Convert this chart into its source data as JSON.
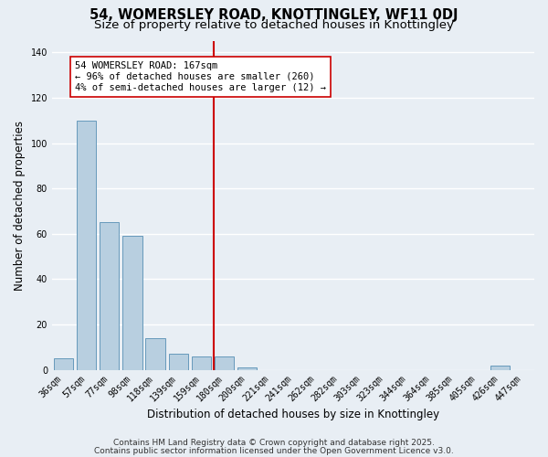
{
  "title": "54, WOMERSLEY ROAD, KNOTTINGLEY, WF11 0DJ",
  "subtitle": "Size of property relative to detached houses in Knottingley",
  "xlabel": "Distribution of detached houses by size in Knottingley",
  "ylabel": "Number of detached properties",
  "categories": [
    "36sqm",
    "57sqm",
    "77sqm",
    "98sqm",
    "118sqm",
    "139sqm",
    "159sqm",
    "180sqm",
    "200sqm",
    "221sqm",
    "241sqm",
    "262sqm",
    "282sqm",
    "303sqm",
    "323sqm",
    "344sqm",
    "364sqm",
    "385sqm",
    "405sqm",
    "426sqm",
    "447sqm"
  ],
  "values": [
    5,
    110,
    65,
    59,
    14,
    7,
    6,
    6,
    1,
    0,
    0,
    0,
    0,
    0,
    0,
    0,
    0,
    0,
    0,
    2,
    0
  ],
  "bar_color": "#b8cfe0",
  "bar_edge_color": "#6699bb",
  "annotation_line1": "54 WOMERSLEY ROAD: 167sqm",
  "annotation_line2": "← 96% of detached houses are smaller (260)",
  "annotation_line3": "4% of semi-detached houses are larger (12) →",
  "vline_x": 6.55,
  "vline_color": "#cc0000",
  "annotation_box_edge": "#cc0000",
  "background_color": "#e8eef4",
  "grid_color": "#ffffff",
  "ylim": [
    0,
    145
  ],
  "yticks": [
    0,
    20,
    40,
    60,
    80,
    100,
    120,
    140
  ],
  "footer_line1": "Contains HM Land Registry data © Crown copyright and database right 2025.",
  "footer_line2": "Contains public sector information licensed under the Open Government Licence v3.0.",
  "title_fontsize": 10.5,
  "subtitle_fontsize": 9.5,
  "xlabel_fontsize": 8.5,
  "ylabel_fontsize": 8.5,
  "tick_fontsize": 7,
  "annot_fontsize": 7.5,
  "footer_fontsize": 6.5
}
